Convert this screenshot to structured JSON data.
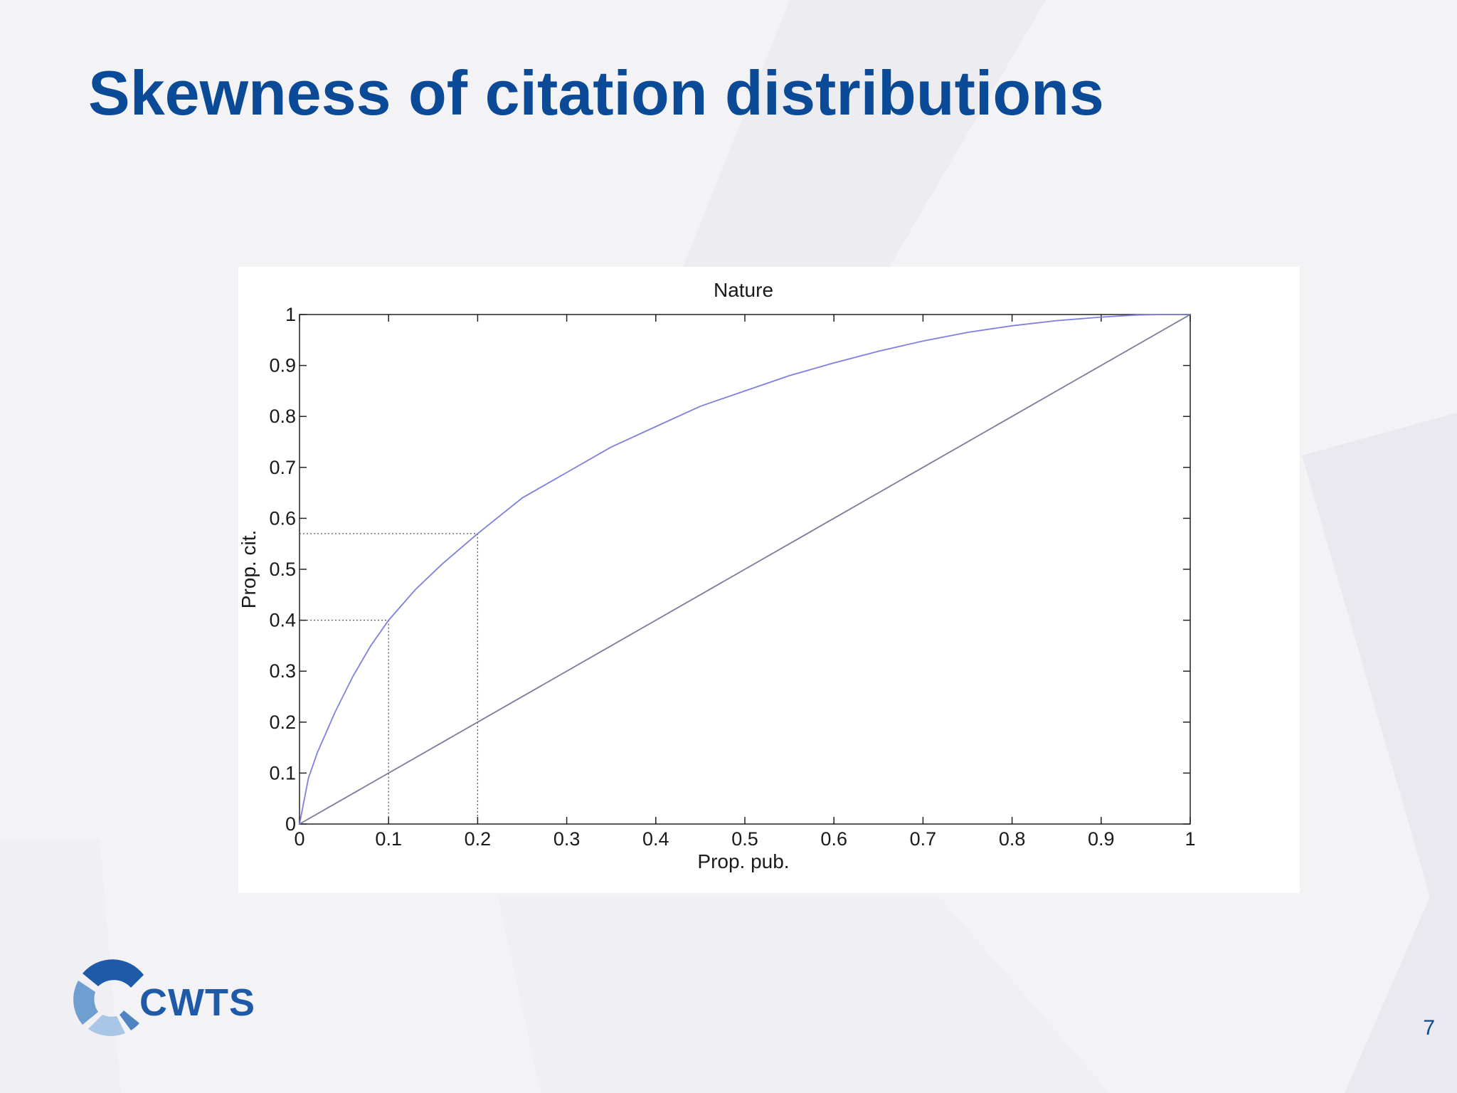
{
  "slide": {
    "title": "Skewness of citation distributions",
    "page_number": "7",
    "logo_text": "CWTS"
  },
  "colors": {
    "title": "#0a4a96",
    "curve": "#7f7fe0",
    "diagonal": "#7b7b9a",
    "guides": "#555555"
  },
  "chart_data": {
    "type": "line",
    "title": "Nature",
    "xlabel": "Prop. pub.",
    "ylabel": "Prop. cit.",
    "xlim": [
      0,
      1
    ],
    "ylim": [
      0,
      1
    ],
    "xticks": [
      "0",
      "0.1",
      "0.2",
      "0.3",
      "0.4",
      "0.5",
      "0.6",
      "0.7",
      "0.8",
      "0.9",
      "1"
    ],
    "yticks": [
      "0",
      "0.1",
      "0.2",
      "0.3",
      "0.4",
      "0.5",
      "0.6",
      "0.7",
      "0.8",
      "0.9",
      "1"
    ],
    "grid": false,
    "series": [
      {
        "x": [
          0,
          0.01,
          0.02,
          0.04,
          0.06,
          0.08,
          0.1,
          0.13,
          0.16,
          0.2,
          0.25,
          0.3,
          0.35,
          0.4,
          0.45,
          0.5,
          0.55,
          0.6,
          0.65,
          0.7,
          0.75,
          0.8,
          0.85,
          0.9,
          0.94,
          0.97,
          1
        ],
        "y": [
          0,
          0.09,
          0.14,
          0.22,
          0.29,
          0.35,
          0.4,
          0.46,
          0.51,
          0.57,
          0.64,
          0.69,
          0.74,
          0.78,
          0.82,
          0.85,
          0.88,
          0.905,
          0.928,
          0.948,
          0.965,
          0.978,
          0.988,
          0.995,
          0.999,
          1.0,
          1.0
        ]
      },
      {
        "x": [
          0,
          1
        ],
        "y": [
          0,
          1
        ]
      }
    ],
    "annotations": [
      {
        "x": 0.1,
        "y": 0.4
      },
      {
        "x": 0.2,
        "y": 0.57
      }
    ]
  }
}
